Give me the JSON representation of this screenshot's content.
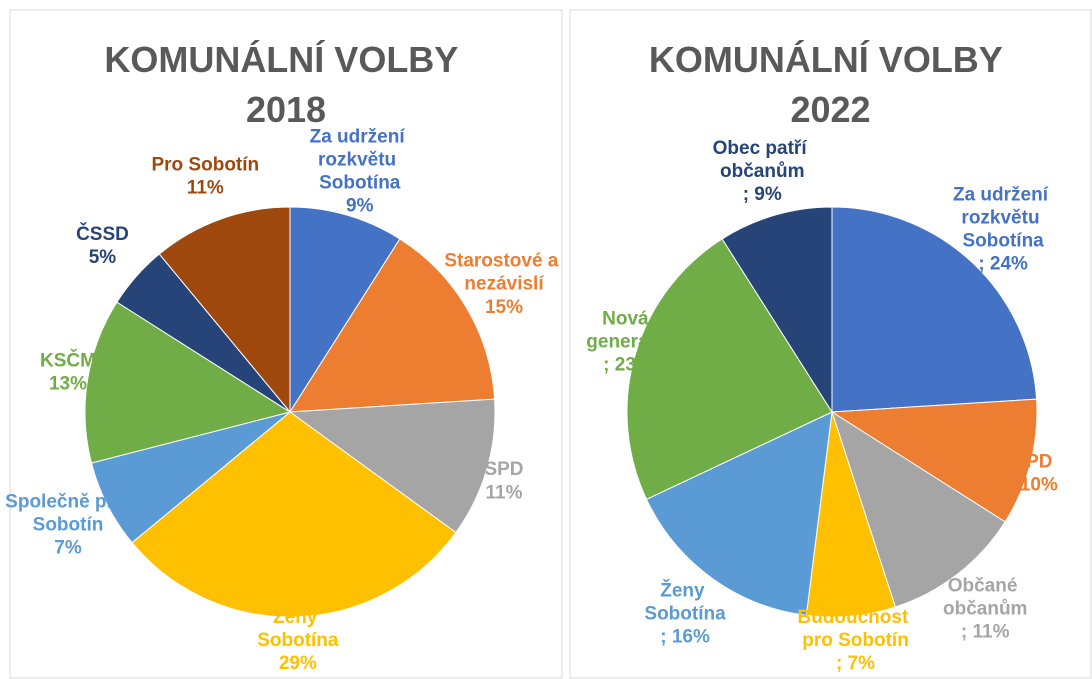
{
  "chart_data": [
    {
      "type": "pie",
      "title": "KOMUNÁLNÍ VOLBY 2018",
      "categories": [
        "Za udržení rozkvětu Sobotína",
        "Starostové a nezávislí",
        "SPD",
        "Ženy Sobotína",
        "Společně pro Sobotín",
        "KSČM",
        "ČSSD",
        "Pro Sobotín"
      ],
      "values": [
        9,
        15,
        11,
        29,
        7,
        13,
        5,
        11
      ],
      "value_labels": [
        "9%",
        "15%",
        "11%",
        "29%",
        "7%",
        "13%",
        "5%",
        "11%"
      ],
      "colors": [
        "#4472c4",
        "#ed7d31",
        "#a5a5a5",
        "#ffc000",
        "#5b9bd5",
        "#70ad47",
        "#264478",
        "#9e480e"
      ]
    },
    {
      "type": "pie",
      "title": "KOMUNÁLNÍ VOLBY 2022",
      "categories": [
        "Za udržení rozkvětu Sobotína",
        "SPD",
        "Občané občanům",
        "Budoucnost pro Sobotín",
        "Ženy Sobotína",
        "Nová generace",
        "Obec patří občanům"
      ],
      "values": [
        24,
        10,
        11,
        7,
        16,
        23,
        9
      ],
      "value_labels": [
        "; 24%",
        "; 10%",
        "; 11%",
        "; 7%",
        "; 16%",
        "; 23%",
        "; 9%"
      ],
      "colors": [
        "#4472c4",
        "#ed7d31",
        "#a5a5a5",
        "#ffc000",
        "#5b9bd5",
        "#70ad47",
        "#264478"
      ]
    }
  ]
}
